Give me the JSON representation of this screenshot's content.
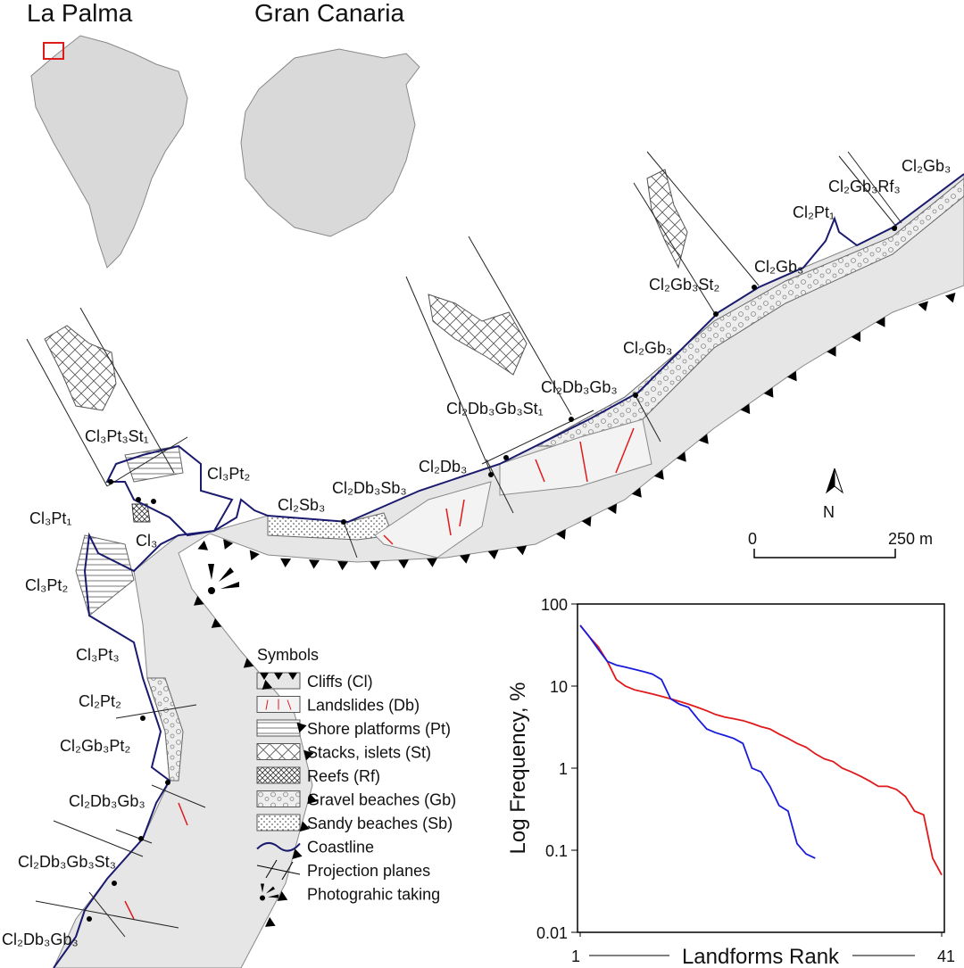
{
  "insets": [
    "La Palma",
    "Gran Canaria"
  ],
  "map_labels": [
    "Cl₂Gb₃",
    "Cl₂Gb₃Rf₃",
    "Cl₂Pt₁",
    "Cl₂Gb₃",
    "Cl₂Gb₃St₂",
    "Cl₂Gb₃",
    "Cl₂Db₃Gb₃",
    "Cl₂Db₃Gb₃St₁",
    "Cl₂Db₃",
    "Cl₂Db₃Sb₃",
    "Cl₂Sb₃",
    "Cl₃Pt₂",
    "Cl₃Pt₃St₁",
    "Cl₃Pt₁",
    "Cl₃",
    "Cl₃Pt₂",
    "Cl₃Pt₃",
    "Cl₂Pt₂",
    "Cl₂Gb₃Pt₂",
    "Cl₂Db₃Gb₃",
    "Cl₂Db₃Gb₃St₃",
    "Cl₂Db₃Gb₃"
  ],
  "north": "N",
  "scale": {
    "start": "0",
    "end": "250 m"
  },
  "legend": {
    "title": "Symbols",
    "items": [
      "Cliffs (Cl)",
      "Landslides (Db)",
      "Shore platforms (Pt)",
      "Stacks, islets (St)",
      "Reefs (Rf)",
      "Gravel beaches (Gb)",
      "Sandy beaches (Sb)",
      "Coastline",
      "Projection planes",
      "Photograhic taking"
    ]
  },
  "chart_data": {
    "type": "line",
    "xlabel": "Landforms Rank",
    "ylabel": "Log Frequency, %",
    "x": [
      1,
      2,
      3,
      4,
      5,
      6,
      7,
      8,
      9,
      10,
      11,
      12,
      13,
      14,
      15,
      16,
      17,
      18,
      19,
      20,
      21,
      22,
      23,
      24,
      25,
      26,
      27,
      28,
      29,
      30,
      31,
      32,
      33,
      34,
      35,
      36,
      37,
      38,
      39,
      40,
      41
    ],
    "series": [
      {
        "color": "#e0191b",
        "values": [
          55,
          40,
          30,
          20,
          12,
          10,
          9,
          8.5,
          8,
          7.5,
          7,
          6.5,
          6,
          5.5,
          5,
          4.5,
          4.2,
          4,
          3.8,
          3.5,
          3.2,
          3,
          2.6,
          2.3,
          2,
          1.8,
          1.5,
          1.3,
          1.2,
          1,
          0.9,
          0.8,
          0.7,
          0.6,
          0.6,
          0.55,
          0.45,
          0.3,
          0.27,
          0.08,
          0.05
        ]
      },
      {
        "color": "#1a1adc",
        "values": [
          55,
          40,
          28,
          20,
          18,
          17,
          16,
          15,
          14,
          12,
          7,
          6,
          5.5,
          4,
          3,
          2.7,
          2.5,
          2.3,
          2,
          1,
          0.9,
          0.6,
          0.35,
          0.3,
          0.12,
          0.09,
          0.08,
          null,
          null,
          null,
          null,
          null,
          null,
          null,
          null,
          null,
          null,
          null,
          null,
          null,
          null
        ]
      }
    ],
    "xlim": [
      1,
      41
    ],
    "xticks": [
      1,
      41
    ],
    "ylim": [
      0.01,
      100
    ],
    "yticks": [
      0.01,
      0.1,
      1,
      10,
      100
    ],
    "yscale": "log"
  }
}
